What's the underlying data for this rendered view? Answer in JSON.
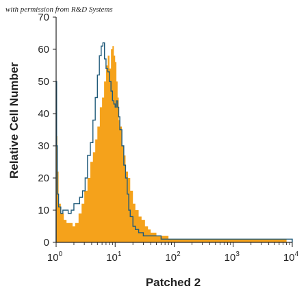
{
  "watermark": "with permission from R&D Systems",
  "chart_data": {
    "type": "area",
    "xlabel": "Patched 2",
    "ylabel": "Relative Cell Number",
    "xscale": "log",
    "xlim": [
      1,
      10000
    ],
    "ylim": [
      0,
      70
    ],
    "yticks": [
      0,
      10,
      20,
      30,
      40,
      50,
      60,
      70
    ],
    "xticks": [
      {
        "value": 1,
        "base": "10",
        "exp": "0"
      },
      {
        "value": 10,
        "base": "10",
        "exp": "1"
      },
      {
        "value": 100,
        "base": "10",
        "exp": "2"
      },
      {
        "value": 1000,
        "base": "10",
        "exp": "3"
      },
      {
        "value": 10000,
        "base": "10",
        "exp": "4"
      }
    ],
    "series": [
      {
        "style": "filled",
        "color": "#F5A21B",
        "x": [
          1.0,
          1.05,
          1.1,
          1.2,
          1.35,
          1.5,
          1.7,
          1.9,
          2.1,
          2.4,
          2.7,
          3.0,
          3.4,
          3.8,
          4.2,
          4.6,
          5.0,
          5.5,
          6.0,
          6.5,
          7.0,
          7.5,
          8.0,
          8.5,
          9.0,
          9.5,
          10.0,
          10.5,
          11.0,
          11.5,
          12.0,
          13.0,
          14.0,
          15.0,
          16.5,
          18.0,
          20.0,
          22.0,
          25.0,
          28.0,
          32.0,
          36.0,
          40.0,
          50.0,
          60.0,
          80.0,
          100.0,
          150.0,
          200.0,
          300.0,
          400.0,
          600.0,
          800.0,
          1000.0,
          1500.0,
          2000.0,
          3000.0,
          4000.0,
          6000.0,
          8000.0,
          10000.0
        ],
        "values": [
          33,
          22,
          12,
          9,
          7,
          6,
          6,
          5,
          6,
          9,
          12,
          16,
          20,
          25,
          28,
          32,
          36,
          42,
          45,
          50,
          55,
          58,
          54,
          60,
          61,
          58,
          56,
          50,
          45,
          38,
          36,
          30,
          27,
          22,
          20,
          16,
          12,
          10,
          8,
          7,
          5,
          4,
          3,
          2,
          2,
          1,
          1,
          1,
          1,
          1,
          1,
          1,
          1,
          1,
          1,
          1,
          1,
          1,
          1,
          0,
          0
        ]
      },
      {
        "style": "outline",
        "color": "#1F5A7A",
        "x": [
          1.0,
          1.02,
          1.05,
          1.1,
          1.2,
          1.3,
          1.45,
          1.6,
          1.8,
          2.0,
          2.2,
          2.5,
          2.8,
          3.1,
          3.4,
          3.8,
          4.2,
          4.6,
          5.0,
          5.4,
          5.8,
          6.2,
          6.6,
          7.0,
          7.5,
          8.0,
          8.5,
          9.0,
          9.5,
          10.0,
          10.5,
          11.0,
          11.5,
          12.0,
          13.0,
          14.0,
          15.0,
          16.0,
          17.0,
          18.0,
          20.0,
          22.0,
          25.0,
          30.0,
          40.0,
          60.0,
          100.0,
          200.0,
          300.0,
          500.0,
          1000.0,
          2000.0,
          3000.0,
          5000.0,
          10000.0
        ],
        "values": [
          50,
          30,
          15,
          11,
          9,
          10,
          10,
          9,
          10,
          12,
          12,
          14,
          16,
          20,
          27,
          31,
          38,
          45,
          52,
          58,
          61,
          62,
          57,
          54,
          53,
          50,
          47,
          44,
          43,
          42,
          44,
          42,
          39,
          35,
          30,
          24,
          20,
          15,
          10,
          8,
          5,
          4,
          3,
          2,
          2,
          1,
          1,
          1,
          1,
          1,
          1,
          1,
          1,
          1,
          0
        ]
      }
    ]
  }
}
